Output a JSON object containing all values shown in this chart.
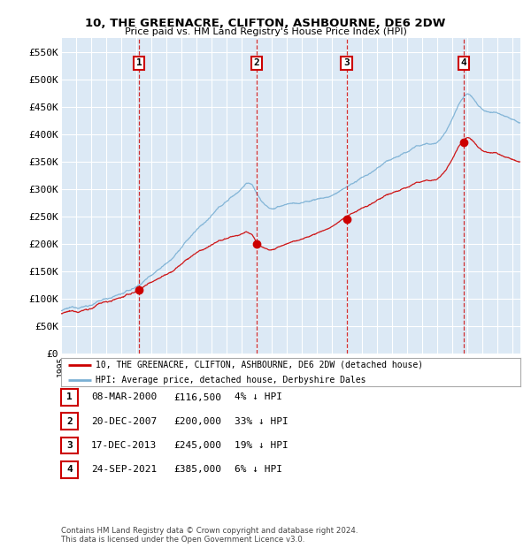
{
  "title1": "10, THE GREENACRE, CLIFTON, ASHBOURNE, DE6 2DW",
  "title2": "Price paid vs. HM Land Registry's House Price Index (HPI)",
  "ylabel_ticks": [
    "£0",
    "£50K",
    "£100K",
    "£150K",
    "£200K",
    "£250K",
    "£300K",
    "£350K",
    "£400K",
    "£450K",
    "£500K",
    "£550K"
  ],
  "ytick_values": [
    0,
    50000,
    100000,
    150000,
    200000,
    250000,
    300000,
    350000,
    400000,
    450000,
    500000,
    550000
  ],
  "ylim": [
    0,
    575000
  ],
  "xlim_start": 1995.0,
  "xlim_end": 2025.5,
  "plot_bg_color": "#dce9f5",
  "sales": [
    {
      "num": 1,
      "date": "08-MAR-2000",
      "year": 2000.19,
      "price": 116500,
      "pct": "4%",
      "label": "1"
    },
    {
      "num": 2,
      "date": "20-DEC-2007",
      "year": 2007.97,
      "price": 200000,
      "pct": "33%",
      "label": "2"
    },
    {
      "num": 3,
      "date": "17-DEC-2013",
      "year": 2013.96,
      "price": 245000,
      "pct": "19%",
      "label": "3"
    },
    {
      "num": 4,
      "date": "24-SEP-2021",
      "year": 2021.73,
      "price": 385000,
      "pct": "6%",
      "label": "4"
    }
  ],
  "legend1": "10, THE GREENACRE, CLIFTON, ASHBOURNE, DE6 2DW (detached house)",
  "legend2": "HPI: Average price, detached house, Derbyshire Dales",
  "footer1": "Contains HM Land Registry data © Crown copyright and database right 2024.",
  "footer2": "This data is licensed under the Open Government Licence v3.0.",
  "red_color": "#cc0000",
  "blue_color": "#7ab0d4"
}
